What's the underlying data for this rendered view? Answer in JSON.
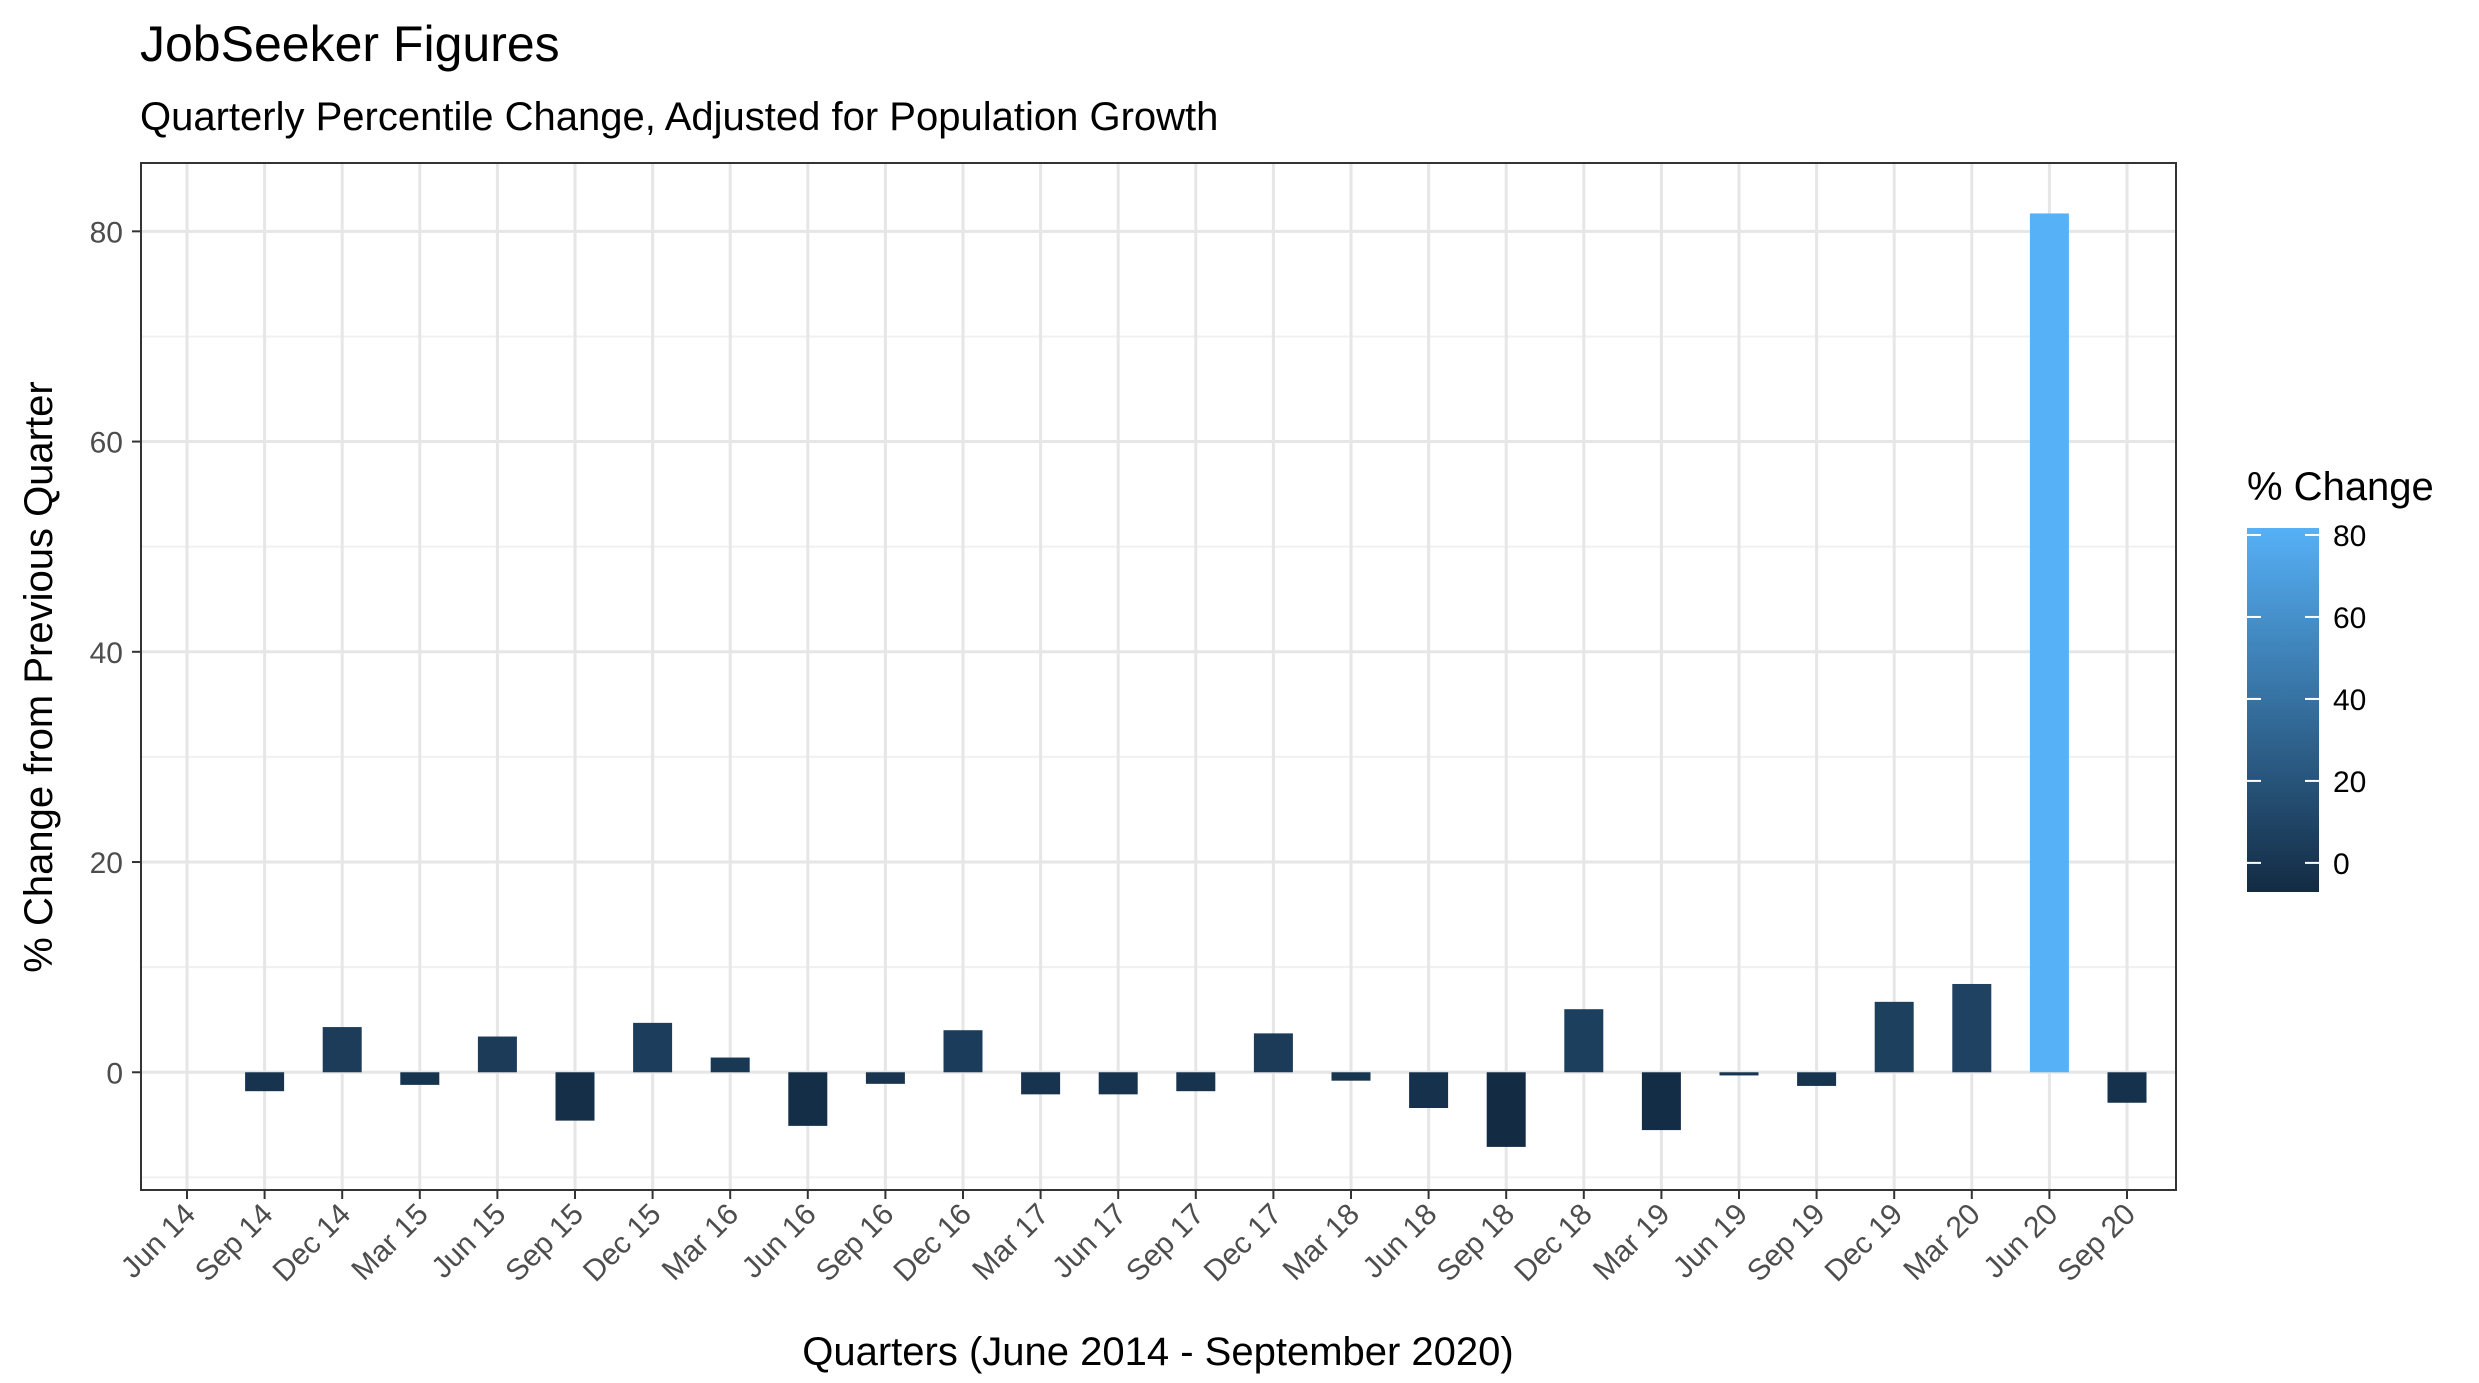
{
  "chart_data": {
    "type": "bar",
    "title": "JobSeeker Figures",
    "subtitle": "Quarterly Percentile Change, Adjusted for Population Growth",
    "xlabel": "Quarters (June 2014 - September 2020)",
    "ylabel": "% Change from Previous Quarter",
    "categories": [
      "Jun 14",
      "Sep 14",
      "Dec 14",
      "Mar 15",
      "Jun 15",
      "Sep 15",
      "Dec 15",
      "Mar 16",
      "Jun 16",
      "Sep 16",
      "Dec 16",
      "Mar 17",
      "Jun 17",
      "Sep 17",
      "Dec 17",
      "Mar 18",
      "Jun 18",
      "Sep 18",
      "Dec 18",
      "Mar 19",
      "Jun 19",
      "Sep 19",
      "Dec 19",
      "Mar 20",
      "Jun 20",
      "Sep 20"
    ],
    "values": [
      null,
      -1.8,
      4.3,
      -1.2,
      3.4,
      -4.6,
      4.7,
      1.4,
      -5.1,
      -1.1,
      4.0,
      -2.1,
      -2.1,
      -1.8,
      3.7,
      -0.8,
      -3.4,
      -7.1,
      6.0,
      -5.5,
      -0.3,
      -1.3,
      6.7,
      8.4,
      81.7,
      -2.9
    ],
    "ylim": [
      -11.2,
      86.5
    ],
    "yticks": [
      0,
      20,
      40,
      60,
      80
    ],
    "grid": true,
    "legend": {
      "title": "% Change",
      "position": "right",
      "ticks": [
        0,
        20,
        40,
        60,
        80
      ],
      "range": [
        -7.1,
        81.7
      ],
      "color_low": "#132B43",
      "color_high": "#56B1F7"
    }
  }
}
